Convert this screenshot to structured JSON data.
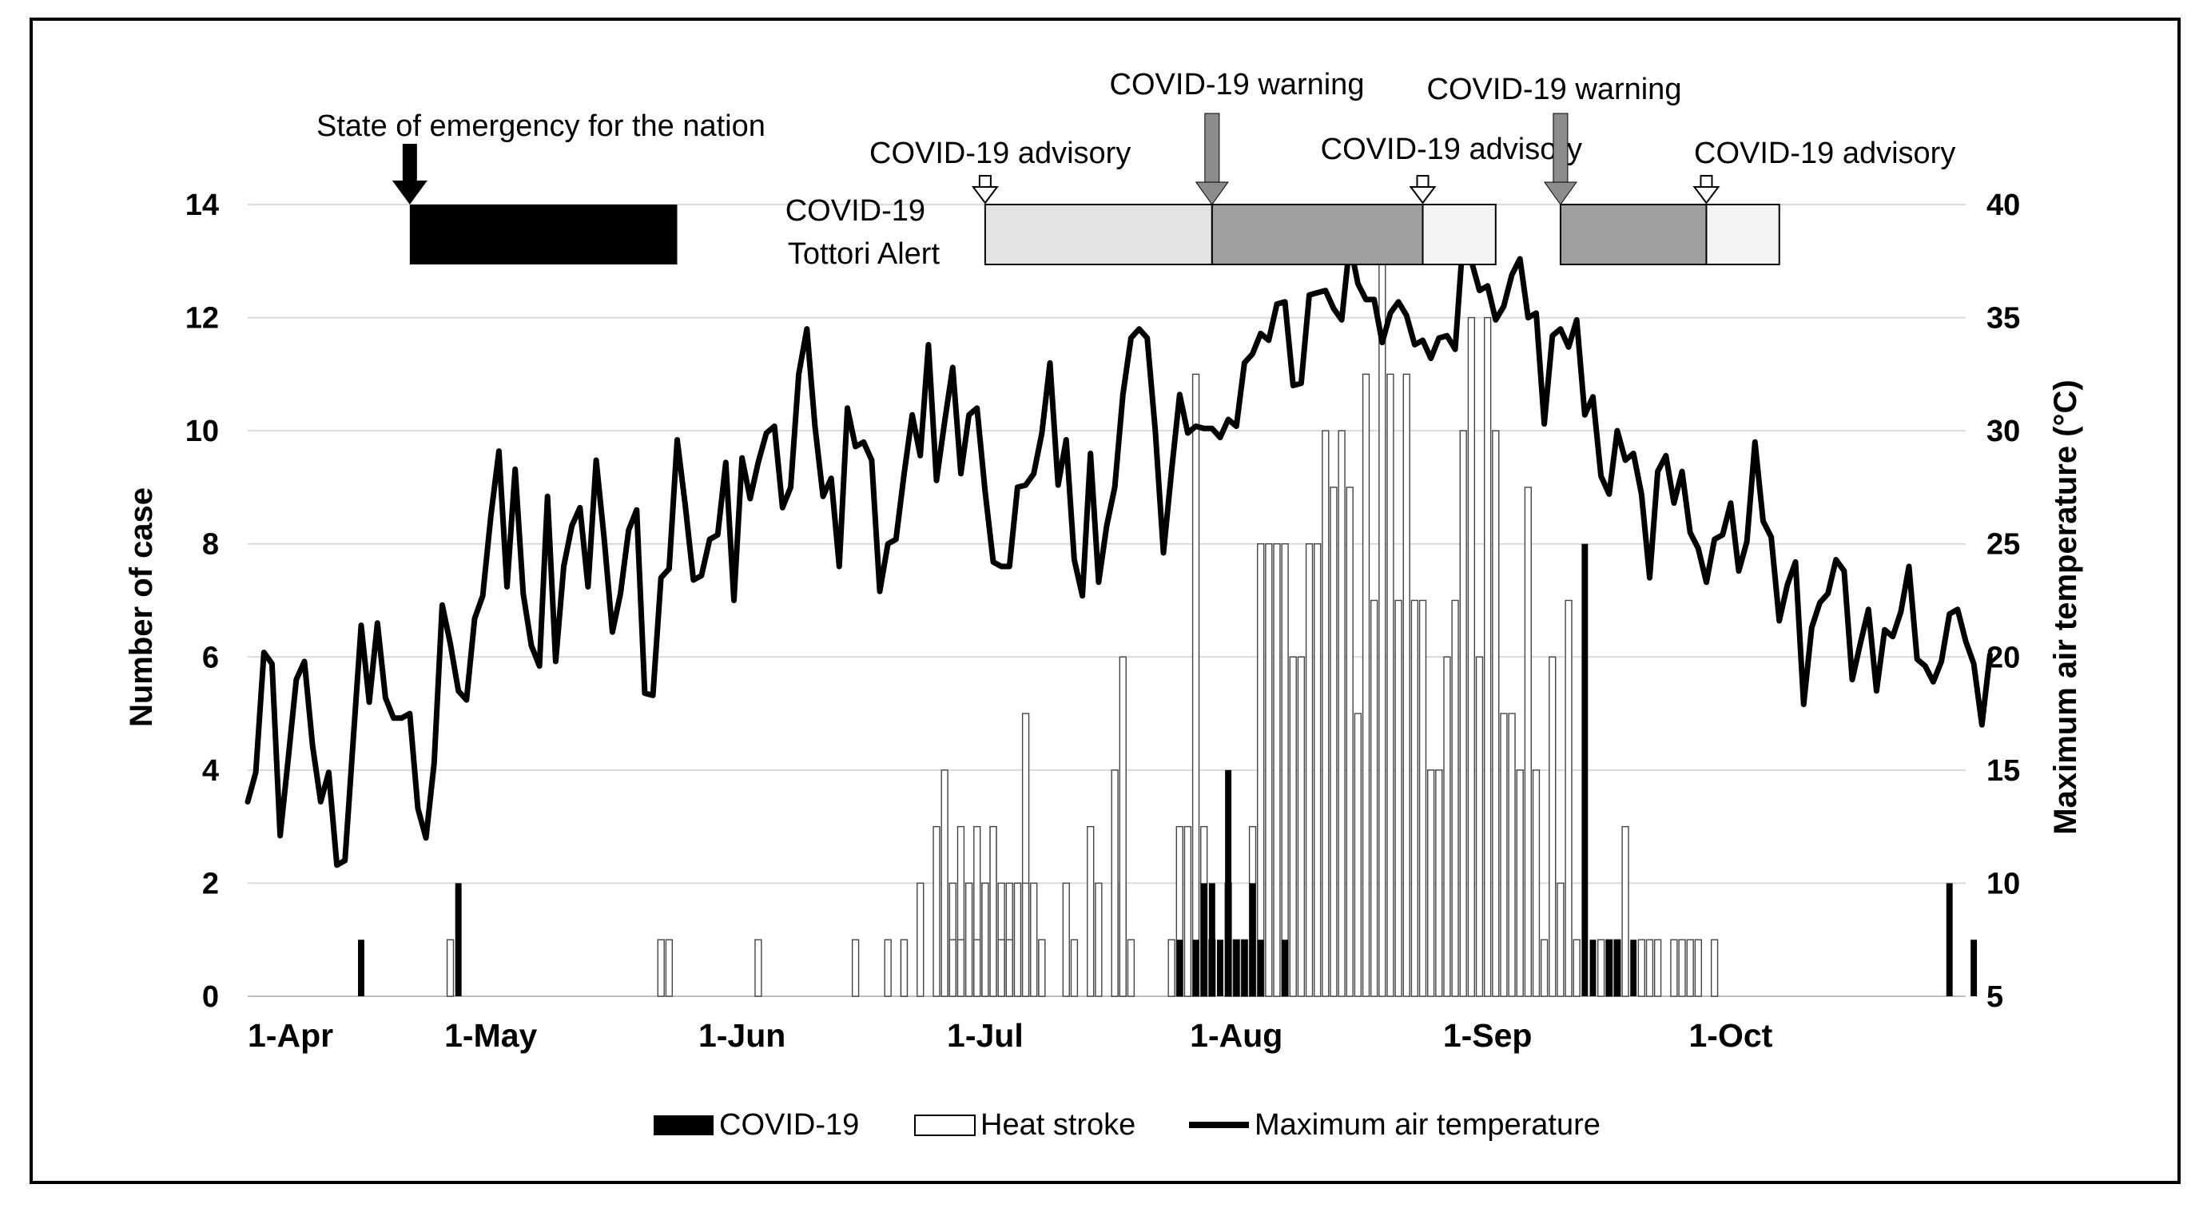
{
  "chart_data": {
    "type": "bar",
    "x_start": "1-Apr",
    "x_end": "30-Oct",
    "x_ticks": [
      "1-Apr",
      "1-May",
      "1-Jun",
      "1-Jul",
      "1-Aug",
      "1-Sep",
      "1-Oct"
    ],
    "ylabel": "Number of case",
    "ylim": [
      0,
      14
    ],
    "yticks": [
      0,
      2,
      4,
      6,
      8,
      10,
      12,
      14
    ],
    "y2label": "Maximum air temperature (°C)",
    "y2lim": [
      5,
      40
    ],
    "y2ticks": [
      5,
      10,
      15,
      20,
      25,
      30,
      35,
      40
    ],
    "grid": "horizontal",
    "legend_position": "bottom",
    "series": [
      {
        "name": "COVID-19",
        "kind": "bar",
        "fill": "#000000",
        "points": [
          [
            "15-Apr",
            1
          ],
          [
            "27-Apr",
            2
          ],
          [
            "25-Jul",
            1
          ],
          [
            "27-Jul",
            1
          ],
          [
            "28-Jul",
            2
          ],
          [
            "29-Jul",
            2
          ],
          [
            "30-Jul",
            1
          ],
          [
            "31-Jul",
            4
          ],
          [
            "1-Aug",
            1
          ],
          [
            "2-Aug",
            1
          ],
          [
            "3-Aug",
            2
          ],
          [
            "4-Aug",
            1
          ],
          [
            "7-Aug",
            1
          ],
          [
            "13-Sep",
            8
          ],
          [
            "14-Sep",
            1
          ],
          [
            "16-Sep",
            1
          ],
          [
            "17-Sep",
            1
          ],
          [
            "19-Sep",
            1
          ],
          [
            "28-Oct",
            2
          ],
          [
            "31-Oct",
            1
          ]
        ]
      },
      {
        "name": "Heat stroke",
        "kind": "bar",
        "fill": "#ffffff",
        "points": [
          [
            "26-Apr",
            1
          ],
          [
            "22-May",
            1
          ],
          [
            "23-May",
            1
          ],
          [
            "3-Jun",
            1
          ],
          [
            "15-Jun",
            1
          ],
          [
            "19-Jun",
            1
          ],
          [
            "21-Jun",
            1
          ],
          [
            "23-Jun",
            2
          ],
          [
            "26-Jun",
            2
          ],
          [
            "27-Jun",
            2
          ],
          [
            "28-Jun",
            3
          ],
          [
            "29-Jun",
            2
          ],
          [
            "30-Jun",
            3
          ],
          [
            "1-Jul",
            2
          ],
          [
            "2-Jul",
            3
          ],
          [
            "3-Jul",
            2
          ],
          [
            "4-Jul",
            2
          ],
          [
            "5-Jul",
            2
          ],
          [
            "6-Jul",
            5
          ],
          [
            "7-Jul",
            2
          ],
          [
            "8-Jul",
            1
          ],
          [
            "11-Jul",
            2
          ],
          [
            "12-Jul",
            1
          ],
          [
            "14-Jul",
            3
          ],
          [
            "15-Jul",
            2
          ],
          [
            "17-Jul",
            2
          ],
          [
            "18-Jul",
            2
          ],
          [
            "21-Jun",
            1
          ],
          [
            "25-Jun",
            3
          ],
          [
            "26-Jun",
            4
          ],
          [
            "27-Jun",
            1
          ],
          [
            "28-Jun",
            1
          ],
          [
            "29-Jun",
            2
          ],
          [
            "30-Jun",
            1
          ],
          [
            "1-Jul",
            2
          ],
          [
            "2-Jul",
            3
          ],
          [
            "3-Jul",
            1
          ],
          [
            "4-Jul",
            1
          ],
          [
            "5-Jul",
            2
          ],
          [
            "6-Jul",
            2
          ],
          [
            "8-Jul",
            1
          ],
          [
            "17-Jul",
            4
          ],
          [
            "18-Jul",
            6
          ],
          [
            "19-Jul",
            1
          ],
          [
            "24-Jul",
            1
          ],
          [
            "25-Jul",
            3
          ],
          [
            "26-Jul",
            3
          ],
          [
            "27-Jul",
            11
          ],
          [
            "28-Jul",
            3
          ],
          [
            "29-Jul",
            1
          ],
          [
            "31-Jul",
            2
          ],
          [
            "1-Aug",
            1
          ],
          [
            "2-Aug",
            1
          ],
          [
            "3-Aug",
            3
          ],
          [
            "4-Aug",
            8
          ],
          [
            "5-Aug",
            8
          ],
          [
            "6-Aug",
            8
          ],
          [
            "7-Aug",
            8
          ],
          [
            "8-Aug",
            6
          ],
          [
            "9-Aug",
            6
          ],
          [
            "10-Aug",
            8
          ],
          [
            "11-Aug",
            8
          ],
          [
            "12-Aug",
            10
          ],
          [
            "13-Aug",
            9
          ],
          [
            "14-Aug",
            10
          ],
          [
            "15-Aug",
            9
          ],
          [
            "16-Aug",
            5
          ],
          [
            "17-Aug",
            11
          ],
          [
            "18-Aug",
            7
          ],
          [
            "19-Aug",
            14
          ],
          [
            "20-Aug",
            11
          ],
          [
            "21-Aug",
            7
          ],
          [
            "22-Aug",
            11
          ],
          [
            "23-Aug",
            7
          ],
          [
            "24-Aug",
            7
          ],
          [
            "25-Aug",
            4
          ],
          [
            "26-Aug",
            4
          ],
          [
            "27-Aug",
            6
          ],
          [
            "28-Aug",
            7
          ],
          [
            "29-Aug",
            10
          ],
          [
            "30-Aug",
            12
          ],
          [
            "31-Aug",
            6
          ],
          [
            "1-Sep",
            12
          ],
          [
            "2-Sep",
            10
          ],
          [
            "3-Sep",
            5
          ],
          [
            "4-Sep",
            5
          ],
          [
            "5-Sep",
            4
          ],
          [
            "6-Sep",
            9
          ],
          [
            "7-Sep",
            4
          ],
          [
            "8-Sep",
            1
          ],
          [
            "9-Sep",
            6
          ],
          [
            "10-Sep",
            2
          ],
          [
            "11-Sep",
            7
          ],
          [
            "12-Sep",
            1
          ],
          [
            "15-Sep",
            1
          ],
          [
            "16-Sep",
            1
          ],
          [
            "17-Sep",
            1
          ],
          [
            "18-Sep",
            3
          ],
          [
            "20-Sep",
            1
          ],
          [
            "21-Sep",
            1
          ],
          [
            "22-Sep",
            1
          ],
          [
            "24-Sep",
            1
          ],
          [
            "25-Sep",
            1
          ],
          [
            "26-Sep",
            1
          ],
          [
            "27-Sep",
            1
          ],
          [
            "29-Sep",
            1
          ]
        ]
      },
      {
        "name": "Maximum air temperature",
        "kind": "line",
        "axis": "right",
        "color": "#000000",
        "start": "1-Apr",
        "values": [
          13.6,
          14.9,
          20.2,
          19.7,
          12.1,
          15.5,
          19.0,
          19.8,
          16.1,
          13.6,
          14.9,
          10.8,
          11.0,
          16.2,
          21.4,
          18.0,
          21.5,
          18.2,
          17.3,
          17.3,
          17.5,
          13.3,
          12.0,
          15.3,
          22.3,
          20.6,
          18.5,
          18.1,
          21.7,
          22.7,
          26.2,
          29.1,
          23.1,
          28.3,
          22.8,
          20.5,
          19.6,
          27.1,
          19.8,
          24.0,
          25.8,
          26.6,
          23.1,
          28.7,
          25.2,
          21.1,
          22.8,
          25.6,
          26.5,
          18.4,
          18.3,
          23.5,
          23.9,
          29.6,
          26.7,
          23.4,
          23.6,
          25.2,
          25.4,
          28.6,
          22.5,
          28.8,
          27.0,
          28.6,
          29.9,
          30.2,
          26.6,
          27.5,
          32.5,
          34.5,
          30.2,
          27.1,
          27.9,
          24.0,
          31.0,
          29.3,
          29.5,
          28.7,
          22.9,
          25.0,
          25.2,
          28.1,
          30.7,
          28.9,
          33.8,
          27.8,
          30.4,
          32.8,
          28.1,
          30.7,
          31.0,
          27.3,
          24.2,
          24.0,
          24.0,
          27.5,
          27.6,
          28.1,
          29.9,
          33.0,
          27.6,
          29.6,
          24.3,
          22.7,
          29.0,
          23.3,
          25.8,
          27.5,
          31.6,
          34.1,
          34.5,
          34.1,
          30.0,
          24.6,
          28.2,
          31.6,
          29.9,
          30.2,
          30.1,
          30.1,
          29.7,
          30.5,
          30.2,
          33.0,
          33.4,
          34.3,
          34.0,
          35.6,
          35.7,
          32.0,
          32.1,
          36.0,
          36.1,
          36.2,
          35.4,
          34.9,
          38.3,
          36.5,
          35.8,
          35.8,
          33.9,
          35.2,
          35.7,
          35.1,
          33.8,
          34.0,
          33.2,
          34.1,
          34.2,
          33.6,
          38.6,
          37.5,
          36.2,
          36.4,
          34.9,
          35.5,
          36.9,
          37.6,
          35.0,
          35.2,
          30.3,
          34.2,
          34.5,
          33.7,
          34.9,
          30.7,
          31.5,
          28.0,
          27.2,
          30.0,
          28.7,
          29.0,
          27.2,
          23.5,
          28.2,
          28.9,
          26.8,
          28.2,
          25.5,
          24.8,
          23.3,
          25.2,
          25.4,
          26.8,
          23.8,
          25.1,
          29.5,
          26.0,
          25.3,
          21.6,
          23.2,
          24.2,
          17.9,
          21.3,
          22.4,
          22.8,
          24.3,
          23.8,
          19.0,
          20.6,
          22.1,
          18.5,
          21.2,
          20.9,
          22.0,
          24.0,
          19.9,
          19.6,
          18.9,
          19.8,
          21.9,
          22.1,
          20.7,
          19.7,
          17.0,
          20.1
        ]
      }
    ],
    "legend": [
      "COVID-19",
      "Heat stroke",
      "Maximum air temperature"
    ],
    "annotations": {
      "emergency": {
        "label": "State of emergency for the nation",
        "start": "21-Apr",
        "end": "24-May",
        "fill": "#000000"
      },
      "tottori_alert": {
        "label_line1": "COVID-19",
        "label_line2": "Tottori Alert",
        "periods": [
          {
            "label": "COVID-19 advisory",
            "start": "1-Jul",
            "end": "29-Jul",
            "fill": "#e3e3e3",
            "arrow": "hollow"
          },
          {
            "label": "COVID-19 warning",
            "start": "29-Jul",
            "end": "24-Aug",
            "fill": "#9f9f9f",
            "arrow": "gray"
          },
          {
            "label": "COVID-19 advisory",
            "start": "24-Aug",
            "end": "2-Sep",
            "fill": "#f4f4f4",
            "arrow": "hollow"
          },
          {
            "label": "COVID-19 warning",
            "start": "10-Sep",
            "end": "28-Sep",
            "fill": "#9f9f9f",
            "arrow": "gray"
          },
          {
            "label": "COVID-19 advisory",
            "start": "28-Sep",
            "end": "7-Oct",
            "fill": "#f4f4f4",
            "arrow": "hollow"
          }
        ]
      }
    }
  }
}
